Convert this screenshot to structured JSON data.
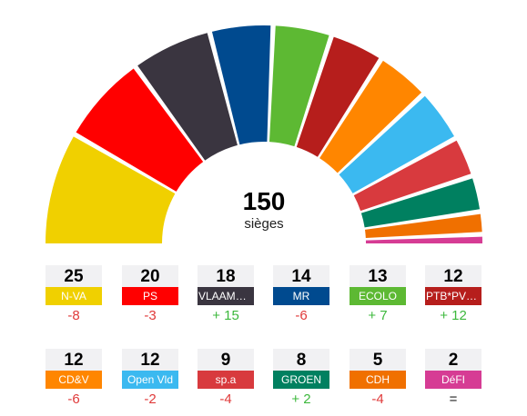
{
  "chart_data": {
    "type": "hemicycle",
    "total": 150,
    "total_label": "sièges",
    "parties": [
      {
        "name": "N-VA",
        "seats": 25,
        "change": "-8",
        "color": "#f0d000"
      },
      {
        "name": "PS",
        "seats": 20,
        "change": "-3",
        "color": "#ff0000"
      },
      {
        "name": "VLAAMS…",
        "seats": 18,
        "change": "+ 15",
        "color": "#3a3540"
      },
      {
        "name": "MR",
        "seats": 14,
        "change": "-6",
        "color": "#004a8f"
      },
      {
        "name": "ECOLO",
        "seats": 13,
        "change": "+ 7",
        "color": "#5db933"
      },
      {
        "name": "PTB*PVDA",
        "seats": 12,
        "change": "+ 12",
        "color": "#b61e1c"
      },
      {
        "name": "CD&V",
        "seats": 12,
        "change": "-6",
        "color": "#ff8600"
      },
      {
        "name": "Open Vld",
        "seats": 12,
        "change": "-2",
        "color": "#3bb9f0"
      },
      {
        "name": "sp.a",
        "seats": 9,
        "change": "-4",
        "color": "#d83a3e"
      },
      {
        "name": "GROEN",
        "seats": 8,
        "change": "+ 2",
        "color": "#008060"
      },
      {
        "name": "CDH",
        "seats": 5,
        "change": "-4",
        "color": "#f07000"
      },
      {
        "name": "DéFI",
        "seats": 2,
        "change": "=",
        "color": "#d63c94"
      }
    ]
  }
}
